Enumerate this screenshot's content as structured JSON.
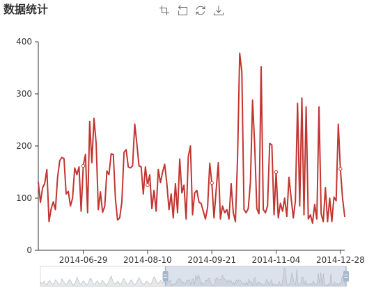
{
  "colors": {
    "line": "#c23531",
    "axis": "#333333",
    "toolbox_icon": "#666666",
    "slider_border": "#dddddd",
    "slider_window": "rgba(167,183,204,0.4)",
    "slider_handle": "#a7b7cc",
    "slider_data_fill": "rgba(47,69,84,0.12)",
    "slider_data_line": "rgba(47,69,84,0.35)"
  },
  "toolbox": {
    "icons": [
      "data-zoom-icon",
      "data-zoom-back-icon",
      "restore-icon",
      "save-as-image-icon"
    ]
  },
  "chart_data": {
    "type": "line",
    "title": "数据统计",
    "xlabel": "",
    "ylabel": "",
    "ylim": [
      0,
      400
    ],
    "y_ticks": [
      0,
      100,
      200,
      300,
      400
    ],
    "x_ticks": [
      {
        "label": "2014-06-29",
        "index": 120
      },
      {
        "label": "2014-08-10",
        "index": 150
      },
      {
        "label": "2014-09-21",
        "index": 180
      },
      {
        "label": "2014-11-04",
        "index": 210
      },
      {
        "label": "2014-12-28",
        "index": 240
      }
    ],
    "grid": false,
    "legend": "none",
    "zoom_window": {
      "start_index": 99,
      "end_index": 242
    },
    "series": [
      {
        "color": "#c23531",
        "values": [
          120,
          95,
          110,
          140,
          85,
          70,
          105,
          150,
          130,
          90,
          75,
          115,
          160,
          135,
          100,
          80,
          95,
          180,
          145,
          110,
          70,
          85,
          125,
          165,
          140,
          95,
          60,
          90,
          130,
          210,
          150,
          100,
          75,
          110,
          145,
          120,
          85,
          65,
          100,
          170,
          190,
          130,
          90,
          70,
          115,
          140,
          105,
          80,
          95,
          155,
          125,
          90,
          60,
          85,
          120,
          175,
          230,
          160,
          110,
          80,
          100,
          135,
          115,
          75,
          90,
          145,
          185,
          140,
          100,
          70,
          95,
          130,
          160,
          120,
          85,
          65,
          110,
          150,
          200,
          170,
          115,
          90,
          75,
          105,
          140,
          120,
          95,
          80,
          100,
          160,
          215,
          180,
          125,
          90,
          110,
          145,
          130,
          100,
          115,
          130,
          92,
          120,
          128,
          155,
          55,
          80,
          93,
          78,
          140,
          172,
          178,
          176,
          108,
          113,
          85,
          100,
          158,
          145,
          160,
          75,
          162,
          184,
          72,
          247,
          168,
          253,
          205,
          78,
          112,
          73,
          84,
          152,
          145,
          185,
          184,
          98,
          58,
          62,
          93,
          188,
          193,
          160,
          158,
          162,
          242,
          205,
          162,
          160,
          108,
          160,
          125,
          145,
          80,
          115,
          75,
          155,
          130,
          150,
          165,
          128,
          78,
          108,
          62,
          128,
          72,
          175,
          110,
          125,
          60,
          180,
          200,
          68,
          110,
          115,
          92,
          90,
          75,
          60,
          82,
          167,
          129,
          62,
          115,
          168,
          60,
          85,
          72,
          78,
          60,
          128,
          72,
          55,
          180,
          378,
          342,
          78,
          72,
          80,
          130,
          288,
          200,
          80,
          70,
          352,
          78,
          72,
          85,
          205,
          202,
          68,
          150,
          62,
          90,
          75,
          100,
          65,
          140,
          100,
          62,
          95,
          282,
          85,
          292,
          68,
          275,
          60,
          68,
          52,
          88,
          60,
          275,
          70,
          55,
          120,
          55,
          100,
          55,
          102,
          95,
          242,
          156,
          100,
          65
        ]
      }
    ]
  }
}
